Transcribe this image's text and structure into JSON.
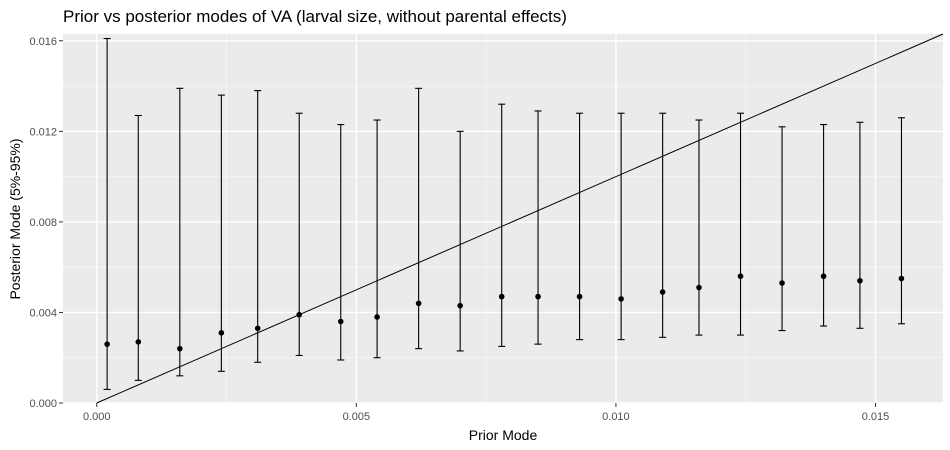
{
  "chart_data": {
    "type": "scatter",
    "title": "Prior vs posterior modes of VA (larval size, without parental effects)",
    "xlabel": "Prior Mode",
    "ylabel": "Posterior Mode (5%-95%)",
    "xlim": [
      -0.00065,
      0.0163
    ],
    "ylim": [
      0.0,
      0.0163
    ],
    "x_ticks": [
      0.0,
      0.005,
      0.01,
      0.015
    ],
    "x_tick_labels": [
      "0.000",
      "0.005",
      "0.010",
      "0.015"
    ],
    "y_ticks": [
      0.0,
      0.004,
      0.008,
      0.012,
      0.016
    ],
    "y_tick_labels": [
      "0.000",
      "0.004",
      "0.008",
      "0.012",
      "0.016"
    ],
    "grid": true,
    "reference_line": {
      "type": "identity",
      "slope": 1,
      "intercept": 0
    },
    "points": [
      {
        "x": 0.0002,
        "y": 0.0026,
        "lower": 0.0006,
        "upper": 0.0161
      },
      {
        "x": 0.0008,
        "y": 0.0027,
        "lower": 0.001,
        "upper": 0.0127
      },
      {
        "x": 0.0016,
        "y": 0.0024,
        "lower": 0.0012,
        "upper": 0.0139
      },
      {
        "x": 0.0024,
        "y": 0.0031,
        "lower": 0.0014,
        "upper": 0.0136
      },
      {
        "x": 0.0031,
        "y": 0.0033,
        "lower": 0.0018,
        "upper": 0.0138
      },
      {
        "x": 0.0039,
        "y": 0.0039,
        "lower": 0.0021,
        "upper": 0.0128
      },
      {
        "x": 0.0047,
        "y": 0.0036,
        "lower": 0.0019,
        "upper": 0.0123
      },
      {
        "x": 0.0054,
        "y": 0.0038,
        "lower": 0.002,
        "upper": 0.0125
      },
      {
        "x": 0.0062,
        "y": 0.0044,
        "lower": 0.0024,
        "upper": 0.0139
      },
      {
        "x": 0.007,
        "y": 0.0043,
        "lower": 0.0023,
        "upper": 0.012
      },
      {
        "x": 0.0078,
        "y": 0.0047,
        "lower": 0.0025,
        "upper": 0.0132
      },
      {
        "x": 0.0085,
        "y": 0.0047,
        "lower": 0.0026,
        "upper": 0.0129
      },
      {
        "x": 0.0093,
        "y": 0.0047,
        "lower": 0.0028,
        "upper": 0.0128
      },
      {
        "x": 0.0101,
        "y": 0.0046,
        "lower": 0.0028,
        "upper": 0.0128
      },
      {
        "x": 0.0109,
        "y": 0.0049,
        "lower": 0.0029,
        "upper": 0.0128
      },
      {
        "x": 0.0116,
        "y": 0.0051,
        "lower": 0.003,
        "upper": 0.0125
      },
      {
        "x": 0.0124,
        "y": 0.0056,
        "lower": 0.003,
        "upper": 0.0128
      },
      {
        "x": 0.0132,
        "y": 0.0053,
        "lower": 0.0032,
        "upper": 0.0122
      },
      {
        "x": 0.014,
        "y": 0.0056,
        "lower": 0.0034,
        "upper": 0.0123
      },
      {
        "x": 0.0147,
        "y": 0.0054,
        "lower": 0.0033,
        "upper": 0.0124
      },
      {
        "x": 0.0155,
        "y": 0.0055,
        "lower": 0.0035,
        "upper": 0.0126
      }
    ],
    "colors": {
      "panel_background": "#ebebeb",
      "grid_major": "#ffffff",
      "grid_minor": "#f5f5f5",
      "points": "#000000",
      "error_bars": "#000000",
      "reference_line": "#000000",
      "tick_labels": "#4d4d4d",
      "tick_marks": "#333333"
    }
  }
}
